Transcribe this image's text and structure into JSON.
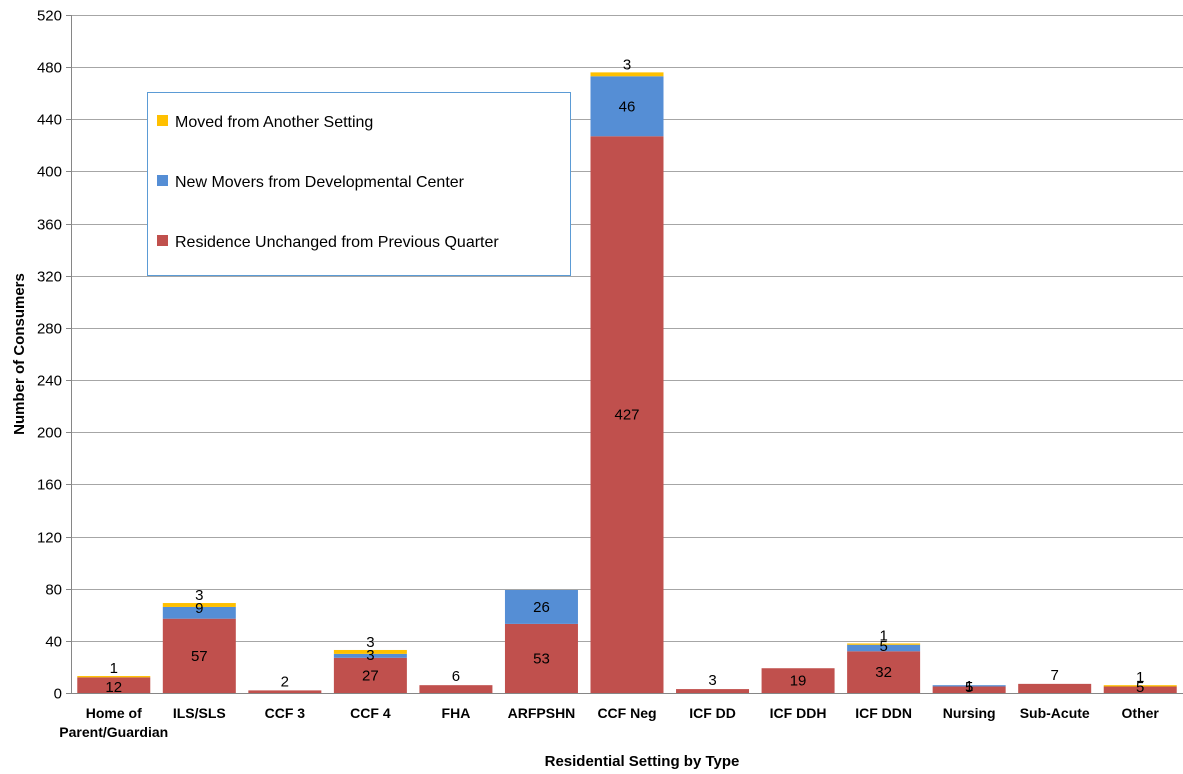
{
  "chart_data": {
    "type": "bar",
    "stacked": true,
    "title": "",
    "xlabel": "Residential Setting by Type",
    "ylabel": "Number of Consumers",
    "ylim": [
      0,
      520
    ],
    "yticks": [
      0,
      40,
      80,
      120,
      160,
      200,
      240,
      280,
      320,
      360,
      400,
      440,
      480,
      520
    ],
    "grid": true,
    "legend_position": "upper-left",
    "categories": [
      [
        "Home of",
        "Parent/Guardian"
      ],
      [
        "ILS/SLS"
      ],
      [
        "CCF 3"
      ],
      [
        "CCF 4"
      ],
      [
        "FHA"
      ],
      [
        "ARFPSHN"
      ],
      [
        "CCF Neg"
      ],
      [
        "ICF DD"
      ],
      [
        "ICF DDH"
      ],
      [
        "ICF DDN"
      ],
      [
        "Nursing"
      ],
      [
        "Sub-Acute"
      ],
      [
        "Other"
      ]
    ],
    "series": [
      {
        "name": "Residence Unchanged from Previous Quarter",
        "color": "#C0504D",
        "values": [
          12,
          57,
          2,
          27,
          6,
          53,
          427,
          3,
          19,
          32,
          5,
          7,
          5
        ]
      },
      {
        "name": "New Movers from Developmental Center",
        "color": "#558ED5",
        "values": [
          0,
          9,
          0,
          3,
          0,
          26,
          46,
          0,
          0,
          5,
          1,
          0,
          0
        ]
      },
      {
        "name": "Moved from Another Setting",
        "color": "#FFC000",
        "values": [
          1,
          3,
          0,
          3,
          0,
          0,
          3,
          0,
          0,
          1,
          0,
          0,
          1
        ]
      }
    ],
    "data_labels": [
      [
        "12",
        "57",
        "2",
        "27",
        "6",
        "53",
        "427",
        "3",
        "19",
        "32",
        "5",
        "7",
        "5"
      ],
      [
        "",
        "9",
        "",
        "3",
        "",
        "26",
        "46",
        "",
        "",
        "5",
        "1",
        "",
        ""
      ],
      [
        "1",
        "3",
        "",
        "3",
        "",
        "",
        "3",
        "",
        "",
        "1",
        "",
        "",
        "1"
      ]
    ],
    "legend_order": [
      2,
      1,
      0
    ]
  }
}
